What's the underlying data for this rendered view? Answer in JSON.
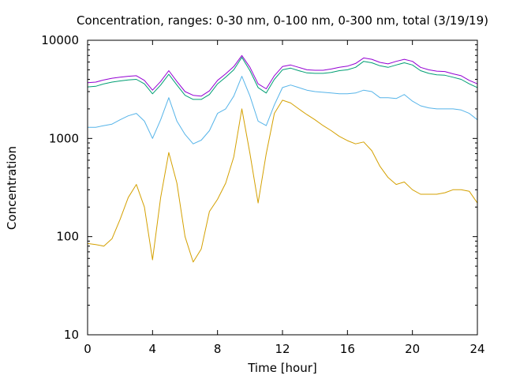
{
  "chart_data": {
    "type": "line",
    "title": "Concentration, ranges: 0-30 nm, 0-100 nm, 0-300 nm, total (3/19/19)",
    "xlabel": "Time [hour]",
    "ylabel": "Concentration",
    "xlim": [
      0,
      24
    ],
    "ylim": [
      10,
      10000
    ],
    "yscale": "log",
    "grid": false,
    "legend": "none",
    "x_ticks": [
      0,
      4,
      8,
      12,
      16,
      20,
      24
    ],
    "x_tick_labels": [
      "0",
      "4",
      "8",
      "12",
      "16",
      "20",
      "24"
    ],
    "y_ticks": [
      10,
      100,
      1000,
      10000
    ],
    "y_tick_labels": [
      "10",
      "100",
      "1000",
      "10000"
    ],
    "series": [
      {
        "color": "#d4a000",
        "x": [
          0,
          0.5,
          1,
          1.5,
          2,
          2.5,
          3,
          3.5,
          4,
          4.5,
          5,
          5.5,
          6,
          6.5,
          7,
          7.5,
          8,
          8.5,
          9,
          9.5,
          10,
          10.5,
          11,
          11.5,
          12,
          12.5,
          13,
          13.5,
          14,
          14.5,
          15,
          15.5,
          16,
          16.5,
          17,
          17.5,
          18,
          18.5,
          19,
          19.5,
          20,
          20.5,
          21,
          21.5,
          22,
          22.5,
          23,
          23.5,
          24
        ],
        "y": [
          85,
          83,
          80,
          95,
          150,
          250,
          340,
          200,
          58,
          250,
          720,
          350,
          100,
          55,
          75,
          180,
          240,
          350,
          650,
          2000,
          700,
          220,
          700,
          1800,
          2450,
          2300,
          2000,
          1750,
          1550,
          1350,
          1200,
          1050,
          950,
          880,
          920,
          750,
          520,
          400,
          340,
          360,
          300,
          270,
          270,
          270,
          280,
          300,
          300,
          290,
          220
        ]
      },
      {
        "color": "#56b4e9",
        "x": [
          0,
          0.5,
          1,
          1.5,
          2,
          2.5,
          3,
          3.5,
          4,
          4.5,
          5,
          5.5,
          6,
          6.5,
          7,
          7.5,
          8,
          8.5,
          9,
          9.5,
          10,
          10.5,
          11,
          11.5,
          12,
          12.5,
          13,
          13.5,
          14,
          14.5,
          15,
          15.5,
          16,
          16.5,
          17,
          17.5,
          18,
          18.5,
          19,
          19.5,
          20,
          20.5,
          21,
          21.5,
          22,
          22.5,
          23,
          23.5,
          24
        ],
        "y": [
          1300,
          1300,
          1350,
          1400,
          1550,
          1700,
          1800,
          1500,
          1000,
          1550,
          2600,
          1500,
          1100,
          880,
          960,
          1200,
          1800,
          2000,
          2700,
          4300,
          2700,
          1500,
          1350,
          2200,
          3300,
          3500,
          3300,
          3100,
          3000,
          2950,
          2900,
          2850,
          2850,
          2900,
          3100,
          3000,
          2600,
          2600,
          2550,
          2800,
          2400,
          2150,
          2050,
          2000,
          2000,
          2000,
          1950,
          1800,
          1550
        ]
      },
      {
        "color": "#009e73",
        "x": [
          0,
          0.5,
          1,
          1.5,
          2,
          2.5,
          3,
          3.5,
          4,
          4.5,
          5,
          5.5,
          6,
          6.5,
          7,
          7.5,
          8,
          8.5,
          9,
          9.5,
          10,
          10.5,
          11,
          11.5,
          12,
          12.5,
          13,
          13.5,
          14,
          14.5,
          15,
          15.5,
          16,
          16.5,
          17,
          17.5,
          18,
          18.5,
          19,
          19.5,
          20,
          20.5,
          21,
          21.5,
          22,
          22.5,
          23,
          23.5,
          24
        ],
        "y": [
          3350,
          3400,
          3600,
          3750,
          3850,
          3950,
          4000,
          3600,
          2850,
          3500,
          4500,
          3500,
          2750,
          2500,
          2500,
          2800,
          3600,
          4200,
          5000,
          6700,
          4900,
          3300,
          2900,
          4000,
          5000,
          5200,
          4900,
          4650,
          4600,
          4600,
          4700,
          4900,
          5000,
          5300,
          6100,
          5900,
          5500,
          5300,
          5600,
          5900,
          5600,
          4900,
          4600,
          4450,
          4400,
          4200,
          4000,
          3600,
          3300
        ]
      },
      {
        "color": "#9400d3",
        "x": [
          0,
          0.5,
          1,
          1.5,
          2,
          2.5,
          3,
          3.5,
          4,
          4.5,
          5,
          5.5,
          6,
          6.5,
          7,
          7.5,
          8,
          8.5,
          9,
          9.5,
          10,
          10.5,
          11,
          11.5,
          12,
          12.5,
          13,
          13.5,
          14,
          14.5,
          15,
          15.5,
          16,
          16.5,
          17,
          17.5,
          18,
          18.5,
          19,
          19.5,
          20,
          20.5,
          21,
          21.5,
          22,
          22.5,
          23,
          23.5,
          24
        ],
        "y": [
          3700,
          3750,
          3950,
          4100,
          4200,
          4300,
          4350,
          3900,
          3100,
          3800,
          4900,
          3800,
          3000,
          2750,
          2700,
          3050,
          3900,
          4550,
          5400,
          7000,
          5300,
          3600,
          3200,
          4350,
          5400,
          5600,
          5300,
          5000,
          4950,
          4950,
          5100,
          5300,
          5450,
          5800,
          6600,
          6400,
          5950,
          5750,
          6100,
          6400,
          6100,
          5300,
          5000,
          4850,
          4800,
          4550,
          4350,
          3900,
          3600
        ]
      }
    ]
  }
}
